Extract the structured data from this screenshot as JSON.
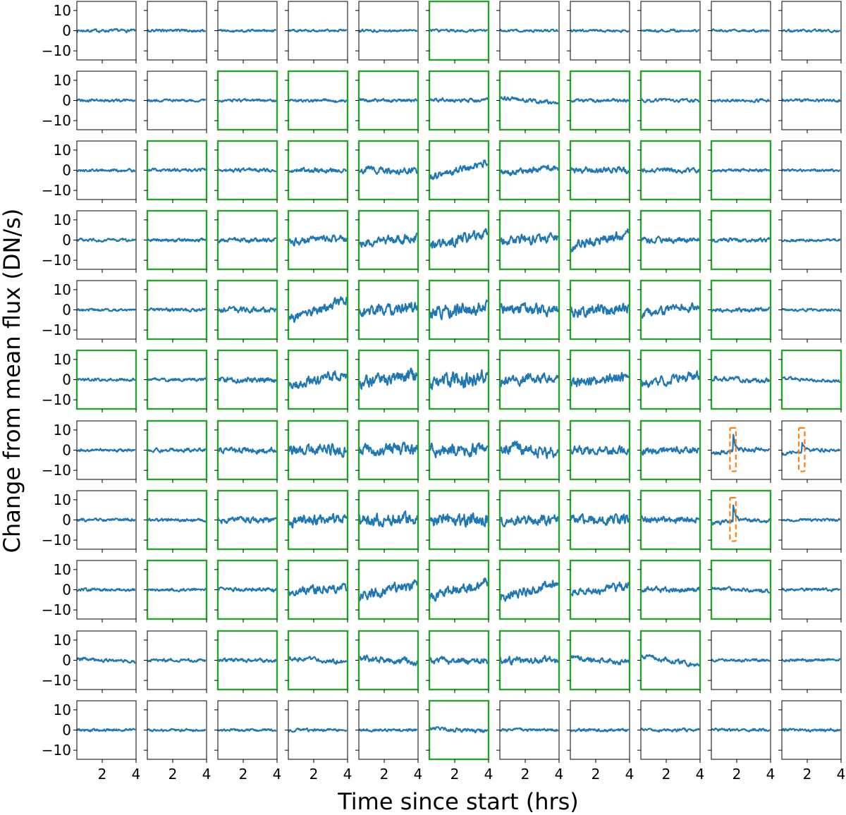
{
  "chart_data": {
    "type": "line",
    "layout": "small-multiples grid",
    "grid_rows": 11,
    "grid_cols": 11,
    "xlabel": "Time since start (hrs)",
    "ylabel": "Change from mean flux (DN/s)",
    "xlim": [
      0.5,
      4.0
    ],
    "ylim": [
      -14.5,
      14.5
    ],
    "xticks": [
      2,
      4
    ],
    "yticks": [
      10,
      0,
      -10
    ],
    "ytick_labels": [
      "10",
      "0",
      "−10"
    ],
    "xtick_labels": [
      "2",
      "4"
    ],
    "grid": false,
    "series_color": "#1f77b4",
    "highlight_frame_color": "#2ca02c",
    "event_box_color": "#ff7f0e",
    "highlighted_cells": [
      [
        0,
        5
      ],
      [
        1,
        2
      ],
      [
        1,
        3
      ],
      [
        1,
        4
      ],
      [
        1,
        5
      ],
      [
        1,
        6
      ],
      [
        1,
        7
      ],
      [
        1,
        8
      ],
      [
        2,
        1
      ],
      [
        2,
        2
      ],
      [
        2,
        3
      ],
      [
        2,
        4
      ],
      [
        2,
        5
      ],
      [
        2,
        6
      ],
      [
        2,
        7
      ],
      [
        2,
        8
      ],
      [
        2,
        9
      ],
      [
        3,
        1
      ],
      [
        3,
        2
      ],
      [
        3,
        3
      ],
      [
        3,
        4
      ],
      [
        3,
        5
      ],
      [
        3,
        6
      ],
      [
        3,
        7
      ],
      [
        3,
        8
      ],
      [
        3,
        9
      ],
      [
        4,
        1
      ],
      [
        4,
        2
      ],
      [
        4,
        3
      ],
      [
        4,
        4
      ],
      [
        4,
        5
      ],
      [
        4,
        6
      ],
      [
        4,
        7
      ],
      [
        4,
        8
      ],
      [
        4,
        9
      ],
      [
        5,
        0
      ],
      [
        5,
        1
      ],
      [
        5,
        2
      ],
      [
        5,
        3
      ],
      [
        5,
        4
      ],
      [
        5,
        5
      ],
      [
        5,
        6
      ],
      [
        5,
        7
      ],
      [
        5,
        8
      ],
      [
        5,
        9
      ],
      [
        5,
        10
      ],
      [
        6,
        1
      ],
      [
        6,
        2
      ],
      [
        6,
        3
      ],
      [
        6,
        4
      ],
      [
        6,
        5
      ],
      [
        6,
        6
      ],
      [
        6,
        7
      ],
      [
        6,
        8
      ],
      [
        7,
        1
      ],
      [
        7,
        2
      ],
      [
        7,
        3
      ],
      [
        7,
        4
      ],
      [
        7,
        5
      ],
      [
        7,
        6
      ],
      [
        7,
        7
      ],
      [
        7,
        8
      ],
      [
        7,
        9
      ],
      [
        8,
        1
      ],
      [
        8,
        2
      ],
      [
        8,
        3
      ],
      [
        8,
        4
      ],
      [
        8,
        5
      ],
      [
        8,
        6
      ],
      [
        8,
        7
      ],
      [
        8,
        8
      ],
      [
        8,
        9
      ],
      [
        9,
        2
      ],
      [
        9,
        3
      ],
      [
        9,
        4
      ],
      [
        9,
        5
      ],
      [
        9,
        6
      ],
      [
        9,
        7
      ],
      [
        9,
        8
      ],
      [
        10,
        5
      ]
    ],
    "noise_amplitude_grid": [
      [
        0.8,
        0.8,
        0.7,
        0.7,
        0.7,
        0.7,
        0.7,
        0.7,
        0.7,
        0.7,
        0.7
      ],
      [
        0.8,
        0.7,
        0.8,
        0.8,
        0.9,
        1.0,
        1.1,
        0.9,
        0.9,
        0.8,
        0.8
      ],
      [
        0.8,
        0.9,
        1.0,
        1.2,
        1.8,
        2.0,
        1.8,
        1.8,
        1.3,
        0.9,
        0.7
      ],
      [
        0.8,
        0.9,
        1.2,
        2.0,
        2.6,
        3.0,
        2.6,
        2.6,
        1.6,
        1.0,
        0.8
      ],
      [
        0.7,
        0.9,
        1.5,
        2.8,
        3.2,
        3.5,
        3.2,
        3.0,
        2.4,
        1.2,
        0.7
      ],
      [
        0.8,
        0.9,
        1.5,
        2.8,
        3.5,
        4.0,
        3.0,
        3.2,
        2.4,
        1.3,
        0.9
      ],
      [
        0.8,
        1.0,
        1.6,
        3.0,
        3.2,
        3.6,
        3.2,
        2.4,
        2.0,
        1.2,
        1.0
      ],
      [
        0.8,
        0.8,
        1.8,
        3.0,
        3.6,
        3.8,
        3.0,
        2.8,
        1.8,
        1.2,
        0.8
      ],
      [
        0.8,
        0.8,
        1.2,
        2.2,
        3.0,
        2.8,
        2.8,
        2.4,
        1.4,
        1.0,
        0.8
      ],
      [
        0.9,
        0.8,
        1.0,
        1.3,
        1.8,
        2.0,
        2.0,
        1.5,
        1.3,
        0.8,
        0.8
      ],
      [
        0.8,
        0.7,
        0.7,
        0.8,
        0.8,
        1.0,
        0.8,
        0.8,
        0.8,
        0.8,
        0.8
      ]
    ],
    "trend_grid": [
      [
        0,
        0,
        0,
        0,
        0,
        0,
        0,
        0,
        0,
        0,
        0
      ],
      [
        0,
        0,
        0,
        0,
        0,
        0,
        2.5,
        0,
        0,
        0,
        0
      ],
      [
        0,
        0,
        0,
        0,
        1,
        -8,
        -3,
        0,
        0,
        0,
        0
      ],
      [
        0,
        0,
        0,
        -2,
        -4,
        -6,
        -2,
        -6,
        0,
        0,
        0
      ],
      [
        0,
        0,
        0,
        -10,
        -2,
        -4,
        0,
        -2,
        -4,
        0,
        0
      ],
      [
        0,
        0,
        0,
        -6,
        -4,
        -2,
        -3,
        -4,
        -5,
        1.5,
        1.5
      ],
      [
        0,
        0,
        0,
        0,
        0,
        0,
        4,
        0,
        0,
        0,
        0
      ],
      [
        0,
        0,
        0,
        -2,
        0,
        0,
        0,
        0,
        0,
        0,
        0
      ],
      [
        0,
        0,
        0,
        -2,
        -6,
        -8,
        -8,
        -4,
        0,
        1.5,
        0
      ],
      [
        1.5,
        0,
        0,
        2.5,
        1.5,
        0,
        0,
        2.5,
        4.5,
        0,
        0
      ],
      [
        0,
        0,
        0,
        0,
        0,
        1.5,
        0,
        0,
        0,
        0,
        0
      ]
    ],
    "event_cells": [
      {
        "row": 6,
        "col": 9,
        "time_hrs": [
          1.6,
          1.95
        ],
        "flux_range": [
          -10.5,
          11.0
        ],
        "peak": 8
      },
      {
        "row": 6,
        "col": 10,
        "time_hrs": [
          1.5,
          1.85
        ],
        "flux_range": [
          -10.5,
          11.0
        ],
        "peak": 4
      },
      {
        "row": 7,
        "col": 9,
        "time_hrs": [
          1.6,
          1.95
        ],
        "flux_range": [
          -10.5,
          11.0
        ],
        "peak": 9
      }
    ]
  }
}
